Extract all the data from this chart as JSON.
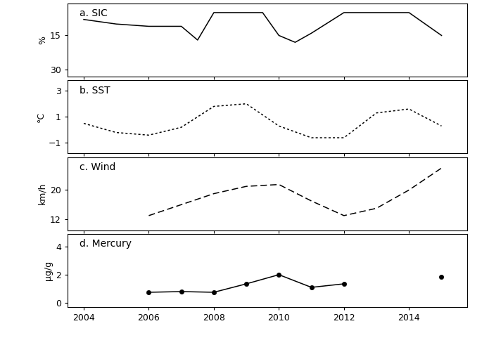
{
  "sic": {
    "x": [
      2004,
      2005,
      2006,
      2007,
      2007.5,
      2008,
      2009,
      2009.5,
      2010,
      2010.5,
      2011,
      2012,
      2013,
      2014,
      2015
    ],
    "y": [
      8,
      10,
      11,
      11,
      17,
      5,
      5,
      5,
      15,
      18,
      14,
      5,
      5,
      5,
      15
    ],
    "ylabel": "%",
    "yticks": [
      15,
      30
    ],
    "ylim": [
      33,
      1
    ],
    "label": "a. SIC",
    "linestyle": "solid"
  },
  "sst": {
    "x": [
      2004,
      2005,
      2006,
      2007,
      2008,
      2009,
      2010,
      2011,
      2012,
      2013,
      2014,
      2015
    ],
    "y": [
      0.5,
      -0.2,
      -0.4,
      0.2,
      1.8,
      2.0,
      0.3,
      -0.6,
      -0.6,
      1.3,
      1.6,
      0.3
    ],
    "ylabel": "°C",
    "yticks": [
      -1,
      1,
      3
    ],
    "ylim": [
      -1.8,
      3.8
    ],
    "label": "b. SST",
    "linestyle": "dotted"
  },
  "wind": {
    "x": [
      2006,
      2007,
      2008,
      2009,
      2010,
      2011,
      2012,
      2013,
      2014,
      2015
    ],
    "y": [
      13,
      16,
      19,
      21,
      21.5,
      17,
      13,
      15,
      20,
      26
    ],
    "ylabel": "km/h",
    "yticks": [
      12,
      20
    ],
    "ylim": [
      9,
      29
    ],
    "label": "c. Wind",
    "linestyle": "dashed"
  },
  "mercury": {
    "x_line": [
      2006,
      2007,
      2008,
      2009,
      2010,
      2011,
      2012
    ],
    "y_line": [
      0.75,
      0.8,
      0.75,
      1.35,
      2.0,
      1.1,
      1.35
    ],
    "x_dot": [
      2015
    ],
    "y_dot": [
      1.85
    ],
    "ylabel": "μg/g",
    "yticks": [
      0,
      2,
      4
    ],
    "ylim": [
      -0.3,
      4.9
    ],
    "label": "d. Mercury",
    "linestyle": "solid"
  },
  "xlim": [
    2003.5,
    2015.8
  ],
  "xticks": [
    2004,
    2006,
    2008,
    2010,
    2012,
    2014
  ],
  "background": "#ffffff",
  "linecolor": "#000000"
}
